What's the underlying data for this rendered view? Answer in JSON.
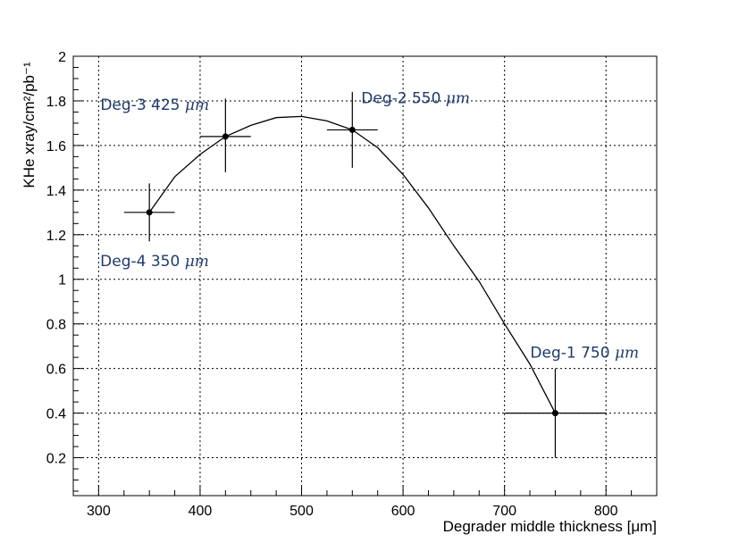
{
  "chart_data": {
    "type": "scatter",
    "xlabel": "Degrader middle thickness [μm]",
    "ylabel": "KHe xray/cm²/pb⁻¹",
    "xlim": [
      275,
      850
    ],
    "ylim": [
      0.03,
      2.0
    ],
    "x_ticks": [
      "300",
      "400",
      "500",
      "600",
      "700",
      "800"
    ],
    "y_ticks": [
      "0.2",
      "0.4",
      "0.6",
      "0.8",
      "1",
      "1.2",
      "1.4",
      "1.6",
      "1.8",
      "2"
    ],
    "grid": true,
    "points": [
      {
        "x": 350,
        "y": 1.3,
        "xerr": 25,
        "yerr_low": 0.13,
        "yerr_high": 0.13
      },
      {
        "x": 425,
        "y": 1.64,
        "xerr": 25,
        "yerr_low": 0.16,
        "yerr_high": 0.17
      },
      {
        "x": 550,
        "y": 1.67,
        "xerr": 25,
        "yerr_low": 0.17,
        "yerr_high": 0.17
      },
      {
        "x": 750,
        "y": 0.4,
        "xerr": 50,
        "yerr_low": 0.2,
        "yerr_high": 0.2
      }
    ],
    "fit_curve": {
      "x": [
        350,
        375,
        400,
        425,
        450,
        475,
        500,
        525,
        550,
        575,
        600,
        625,
        650,
        675,
        700,
        725,
        750
      ],
      "y": [
        1.3,
        1.46,
        1.56,
        1.64,
        1.69,
        1.725,
        1.73,
        1.71,
        1.67,
        1.59,
        1.47,
        1.32,
        1.15,
        0.99,
        0.8,
        0.62,
        0.4
      ]
    },
    "annotations": [
      {
        "label": "Deg-4",
        "value": "350",
        "unit": "μm",
        "x": 350,
        "y": 1.3,
        "color": "#1f3a6e"
      },
      {
        "label": "Deg-3",
        "value": "425",
        "unit": "μm",
        "x": 425,
        "y": 1.64,
        "color": "#1f3a6e"
      },
      {
        "label": "Deg-2",
        "value": "550",
        "unit": "μm",
        "x": 550,
        "y": 1.67,
        "color": "#1f3a6e"
      },
      {
        "label": "Deg-1",
        "value": "750",
        "unit": "μm",
        "x": 750,
        "y": 0.4,
        "color": "#1f3a6e"
      }
    ]
  }
}
